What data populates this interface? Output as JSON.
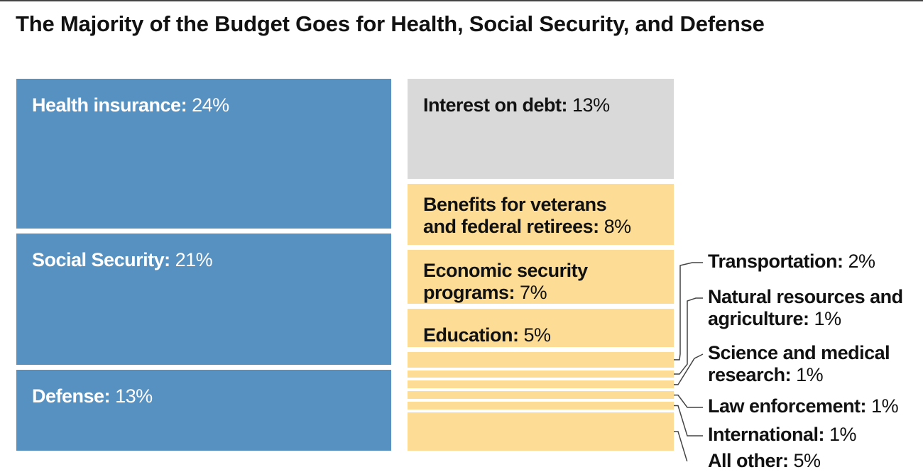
{
  "chart_data": {
    "type": "treemap",
    "title": "The Majority of the Budget Goes for Health, Social Security, and Defense",
    "unit": "%",
    "items": [
      {
        "id": "health",
        "label": "Health insurance:",
        "value": 24,
        "display": "24%",
        "color": "#5791c1"
      },
      {
        "id": "socsec",
        "label": "Social Security:",
        "value": 21,
        "display": "21%",
        "color": "#5791c1"
      },
      {
        "id": "defense",
        "label": "Defense:",
        "value": 13,
        "display": "13%",
        "color": "#5791c1"
      },
      {
        "id": "interest",
        "label": "Interest on debt:",
        "value": 13,
        "display": "13%",
        "color": "#d9d9d9"
      },
      {
        "id": "veterans",
        "label": "Benefits for veterans and federal retirees:",
        "label_lines": [
          "Benefits for veterans",
          "and federal retirees:"
        ],
        "value": 8,
        "display": "8%",
        "color": "#fddc96"
      },
      {
        "id": "econ",
        "label": "Economic security programs:",
        "label_lines": [
          "Economic security",
          "programs:"
        ],
        "value": 7,
        "display": "7%",
        "color": "#fddc96"
      },
      {
        "id": "education",
        "label": "Education:",
        "value": 5,
        "display": "5%",
        "color": "#fddc96"
      },
      {
        "id": "transport",
        "label": "Transportation:",
        "value": 2,
        "display": "2%",
        "color": "#fddc96"
      },
      {
        "id": "natural",
        "label": "Natural resources and agriculture:",
        "label_lines": [
          "Natural resources and",
          "agriculture:"
        ],
        "value": 1,
        "display": "1%",
        "color": "#fddc96"
      },
      {
        "id": "science",
        "label": "Science and medical research:",
        "label_lines": [
          "Science and medical",
          "research:"
        ],
        "value": 1,
        "display": "1%",
        "color": "#fddc96"
      },
      {
        "id": "law",
        "label": "Law enforcement:",
        "value": 1,
        "display": "1%",
        "color": "#fddc96"
      },
      {
        "id": "intl",
        "label": "International:",
        "value": 1,
        "display": "1%",
        "color": "#fddc96"
      },
      {
        "id": "other",
        "label": "All other:",
        "value": 5,
        "display": "5%",
        "color": "#fddc96"
      }
    ]
  }
}
